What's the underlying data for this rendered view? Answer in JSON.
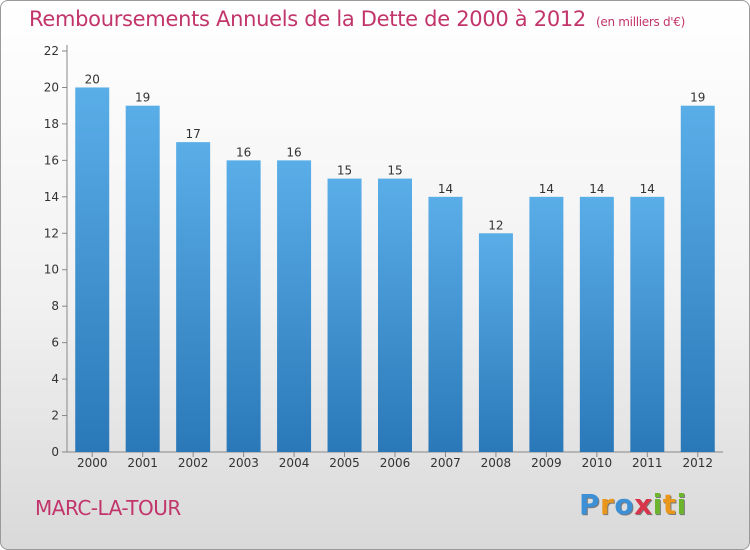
{
  "chart_data": {
    "type": "bar",
    "title": "Remboursements Annuels de la Dette de 2000 à 2012",
    "unit_note": "(en milliers d'€)",
    "categories": [
      "2000",
      "2001",
      "2002",
      "2003",
      "2004",
      "2005",
      "2006",
      "2007",
      "2008",
      "2009",
      "2010",
      "2011",
      "2012"
    ],
    "values": [
      20,
      19,
      17,
      16,
      16,
      15,
      15,
      14,
      12,
      14,
      14,
      14,
      19
    ],
    "ylim": [
      0,
      22
    ],
    "yticks": [
      0,
      2,
      4,
      6,
      8,
      10,
      12,
      14,
      16,
      18,
      20,
      22
    ],
    "xlabel": "",
    "ylabel": "",
    "grid": false,
    "bar_color_top": "#5aaee8",
    "bar_color_bottom": "#2a78b8"
  },
  "footer": {
    "commune": "MARC-LA-TOUR",
    "logo_letters": [
      {
        "char": "P",
        "color": "#3d8fd6"
      },
      {
        "char": "r",
        "color": "#e8961c"
      },
      {
        "char": "o",
        "color": "#3d8fd6"
      },
      {
        "char": "x",
        "color": "#d8354a"
      },
      {
        "char": "i",
        "color": "#6cb52d"
      },
      {
        "char": "t",
        "color": "#e8961c"
      },
      {
        "char": "i",
        "color": "#6cb52d"
      }
    ]
  },
  "colors": {
    "title": "#c2356b",
    "axis": "#888888",
    "text": "#333333"
  }
}
